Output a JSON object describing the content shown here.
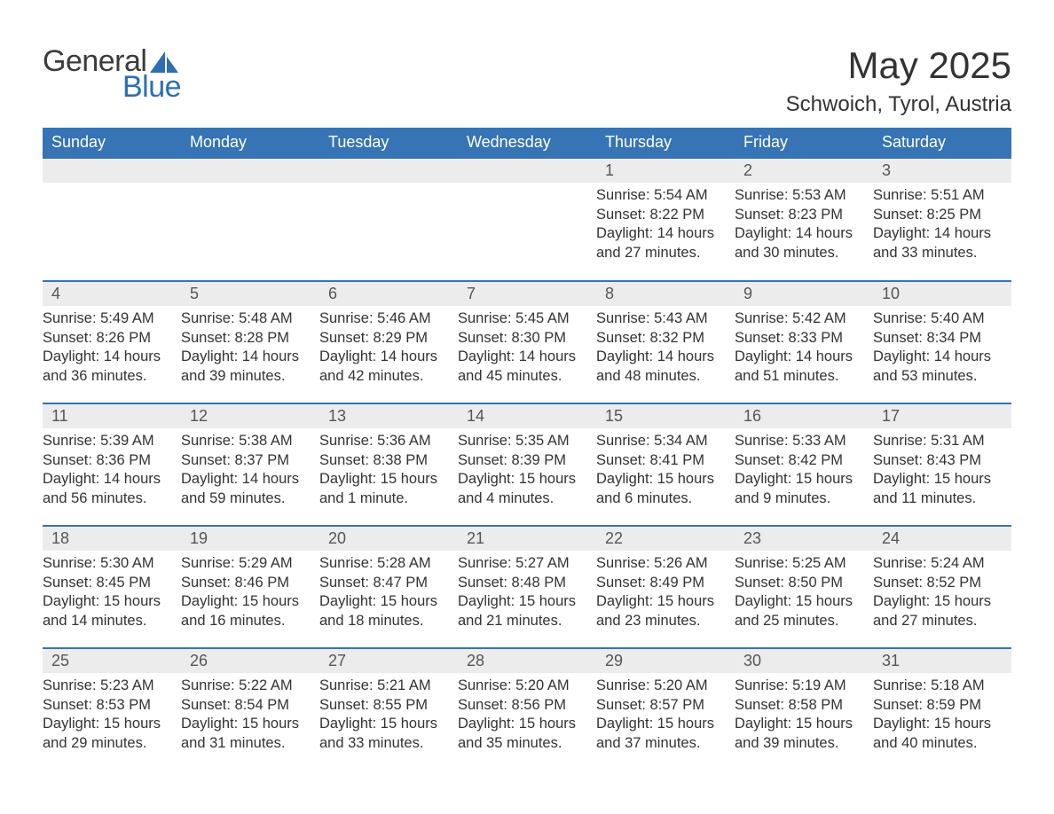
{
  "logo": {
    "text1": "General",
    "text2": "Blue",
    "accent_color": "#2c6fb2"
  },
  "title": "May 2025",
  "location": "Schwoich, Tyrol, Austria",
  "header_bg": "#3674b5",
  "daynum_bg": "#ececec",
  "weekdays": [
    "Sunday",
    "Monday",
    "Tuesday",
    "Wednesday",
    "Thursday",
    "Friday",
    "Saturday"
  ],
  "weeks": [
    [
      null,
      null,
      null,
      null,
      {
        "n": "1",
        "sr": "Sunrise: 5:54 AM",
        "ss": "Sunset: 8:22 PM",
        "d1": "Daylight: 14 hours",
        "d2": "and 27 minutes."
      },
      {
        "n": "2",
        "sr": "Sunrise: 5:53 AM",
        "ss": "Sunset: 8:23 PM",
        "d1": "Daylight: 14 hours",
        "d2": "and 30 minutes."
      },
      {
        "n": "3",
        "sr": "Sunrise: 5:51 AM",
        "ss": "Sunset: 8:25 PM",
        "d1": "Daylight: 14 hours",
        "d2": "and 33 minutes."
      }
    ],
    [
      {
        "n": "4",
        "sr": "Sunrise: 5:49 AM",
        "ss": "Sunset: 8:26 PM",
        "d1": "Daylight: 14 hours",
        "d2": "and 36 minutes."
      },
      {
        "n": "5",
        "sr": "Sunrise: 5:48 AM",
        "ss": "Sunset: 8:28 PM",
        "d1": "Daylight: 14 hours",
        "d2": "and 39 minutes."
      },
      {
        "n": "6",
        "sr": "Sunrise: 5:46 AM",
        "ss": "Sunset: 8:29 PM",
        "d1": "Daylight: 14 hours",
        "d2": "and 42 minutes."
      },
      {
        "n": "7",
        "sr": "Sunrise: 5:45 AM",
        "ss": "Sunset: 8:30 PM",
        "d1": "Daylight: 14 hours",
        "d2": "and 45 minutes."
      },
      {
        "n": "8",
        "sr": "Sunrise: 5:43 AM",
        "ss": "Sunset: 8:32 PM",
        "d1": "Daylight: 14 hours",
        "d2": "and 48 minutes."
      },
      {
        "n": "9",
        "sr": "Sunrise: 5:42 AM",
        "ss": "Sunset: 8:33 PM",
        "d1": "Daylight: 14 hours",
        "d2": "and 51 minutes."
      },
      {
        "n": "10",
        "sr": "Sunrise: 5:40 AM",
        "ss": "Sunset: 8:34 PM",
        "d1": "Daylight: 14 hours",
        "d2": "and 53 minutes."
      }
    ],
    [
      {
        "n": "11",
        "sr": "Sunrise: 5:39 AM",
        "ss": "Sunset: 8:36 PM",
        "d1": "Daylight: 14 hours",
        "d2": "and 56 minutes."
      },
      {
        "n": "12",
        "sr": "Sunrise: 5:38 AM",
        "ss": "Sunset: 8:37 PM",
        "d1": "Daylight: 14 hours",
        "d2": "and 59 minutes."
      },
      {
        "n": "13",
        "sr": "Sunrise: 5:36 AM",
        "ss": "Sunset: 8:38 PM",
        "d1": "Daylight: 15 hours",
        "d2": "and 1 minute."
      },
      {
        "n": "14",
        "sr": "Sunrise: 5:35 AM",
        "ss": "Sunset: 8:39 PM",
        "d1": "Daylight: 15 hours",
        "d2": "and 4 minutes."
      },
      {
        "n": "15",
        "sr": "Sunrise: 5:34 AM",
        "ss": "Sunset: 8:41 PM",
        "d1": "Daylight: 15 hours",
        "d2": "and 6 minutes."
      },
      {
        "n": "16",
        "sr": "Sunrise: 5:33 AM",
        "ss": "Sunset: 8:42 PM",
        "d1": "Daylight: 15 hours",
        "d2": "and 9 minutes."
      },
      {
        "n": "17",
        "sr": "Sunrise: 5:31 AM",
        "ss": "Sunset: 8:43 PM",
        "d1": "Daylight: 15 hours",
        "d2": "and 11 minutes."
      }
    ],
    [
      {
        "n": "18",
        "sr": "Sunrise: 5:30 AM",
        "ss": "Sunset: 8:45 PM",
        "d1": "Daylight: 15 hours",
        "d2": "and 14 minutes."
      },
      {
        "n": "19",
        "sr": "Sunrise: 5:29 AM",
        "ss": "Sunset: 8:46 PM",
        "d1": "Daylight: 15 hours",
        "d2": "and 16 minutes."
      },
      {
        "n": "20",
        "sr": "Sunrise: 5:28 AM",
        "ss": "Sunset: 8:47 PM",
        "d1": "Daylight: 15 hours",
        "d2": "and 18 minutes."
      },
      {
        "n": "21",
        "sr": "Sunrise: 5:27 AM",
        "ss": "Sunset: 8:48 PM",
        "d1": "Daylight: 15 hours",
        "d2": "and 21 minutes."
      },
      {
        "n": "22",
        "sr": "Sunrise: 5:26 AM",
        "ss": "Sunset: 8:49 PM",
        "d1": "Daylight: 15 hours",
        "d2": "and 23 minutes."
      },
      {
        "n": "23",
        "sr": "Sunrise: 5:25 AM",
        "ss": "Sunset: 8:50 PM",
        "d1": "Daylight: 15 hours",
        "d2": "and 25 minutes."
      },
      {
        "n": "24",
        "sr": "Sunrise: 5:24 AM",
        "ss": "Sunset: 8:52 PM",
        "d1": "Daylight: 15 hours",
        "d2": "and 27 minutes."
      }
    ],
    [
      {
        "n": "25",
        "sr": "Sunrise: 5:23 AM",
        "ss": "Sunset: 8:53 PM",
        "d1": "Daylight: 15 hours",
        "d2": "and 29 minutes."
      },
      {
        "n": "26",
        "sr": "Sunrise: 5:22 AM",
        "ss": "Sunset: 8:54 PM",
        "d1": "Daylight: 15 hours",
        "d2": "and 31 minutes."
      },
      {
        "n": "27",
        "sr": "Sunrise: 5:21 AM",
        "ss": "Sunset: 8:55 PM",
        "d1": "Daylight: 15 hours",
        "d2": "and 33 minutes."
      },
      {
        "n": "28",
        "sr": "Sunrise: 5:20 AM",
        "ss": "Sunset: 8:56 PM",
        "d1": "Daylight: 15 hours",
        "d2": "and 35 minutes."
      },
      {
        "n": "29",
        "sr": "Sunrise: 5:20 AM",
        "ss": "Sunset: 8:57 PM",
        "d1": "Daylight: 15 hours",
        "d2": "and 37 minutes."
      },
      {
        "n": "30",
        "sr": "Sunrise: 5:19 AM",
        "ss": "Sunset: 8:58 PM",
        "d1": "Daylight: 15 hours",
        "d2": "and 39 minutes."
      },
      {
        "n": "31",
        "sr": "Sunrise: 5:18 AM",
        "ss": "Sunset: 8:59 PM",
        "d1": "Daylight: 15 hours",
        "d2": "and 40 minutes."
      }
    ]
  ]
}
